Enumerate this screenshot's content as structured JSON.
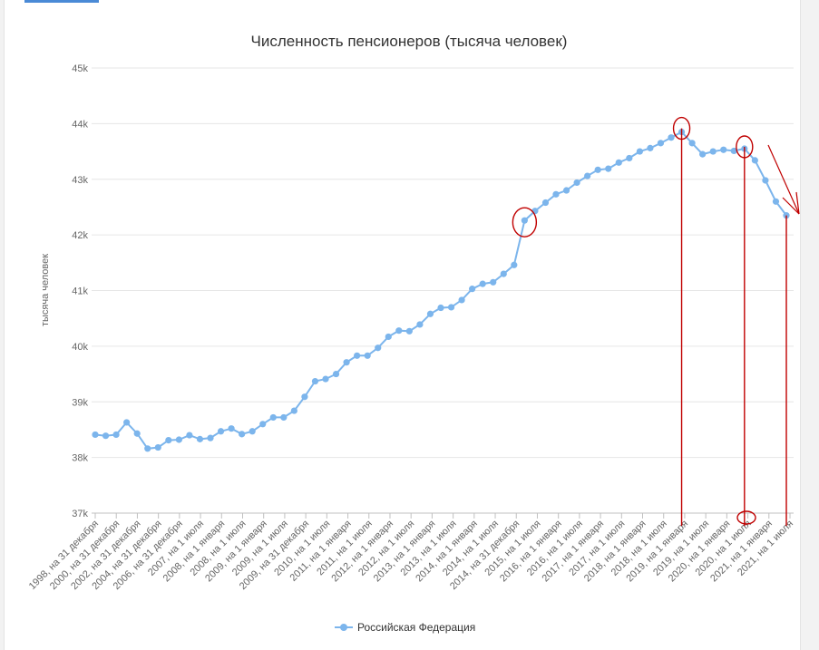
{
  "chart_data": {
    "type": "line",
    "title": "Численность пенсионеров (тысяча человек)",
    "ylabel": "тысяча человек",
    "ylim": [
      37000,
      45000
    ],
    "yticks": [
      {
        "value": 37000,
        "label": "37k"
      },
      {
        "value": 38000,
        "label": "38k"
      },
      {
        "value": 39000,
        "label": "39k"
      },
      {
        "value": 40000,
        "label": "40k"
      },
      {
        "value": 41000,
        "label": "41k"
      },
      {
        "value": 42000,
        "label": "42k"
      },
      {
        "value": 43000,
        "label": "43k"
      },
      {
        "value": 44000,
        "label": "44k"
      },
      {
        "value": 45000,
        "label": "45k"
      }
    ],
    "grid": true,
    "legend_position": "bottom-center",
    "series_color": "#7cb5ec",
    "annotation_color": "#c00000",
    "x_tick_labels": [
      "1998, на 31 декабря",
      "2000, на 31 декабря",
      "2002, на 31 декабря",
      "2004, на 31 декабря",
      "2006, на 31 декабря",
      "2007, на 1 июля",
      "2008, на 1 января",
      "2008, на 1 июля",
      "2009, на 1 января",
      "2009, на 1 июля",
      "2009, на 31 декабря",
      "2010, на 1 июля",
      "2011, на 1 января",
      "2011, на 1 июля",
      "2012, на 1 января",
      "2012, на 1 июля",
      "2013, на 1 января",
      "2013, на 1 июля",
      "2014, на 1 января",
      "2014, на 1 июля",
      "2014, на 31 декабря",
      "2015, на 1 июля",
      "2016, на 1 января",
      "2016, на 1 июля",
      "2017, на 1 января",
      "2017, на 1 июля",
      "2018, на 1 января",
      "2018, на 1 июля",
      "2019, на 1 января",
      "2019, на 1 июля",
      "2020, на 1 января",
      "2020, на 1 июля",
      "2021, на 1 января",
      "2021, на 1 июля"
    ],
    "series": [
      {
        "name": "Российская Федерация",
        "values": [
          38410,
          38390,
          38410,
          38630,
          38430,
          38160,
          38180,
          38310,
          38320,
          38400,
          38330,
          38350,
          38470,
          38520,
          38420,
          38470,
          38600,
          38720,
          38720,
          38840,
          39090,
          39370,
          39410,
          39500,
          39710,
          39830,
          39830,
          39970,
          40170,
          40280,
          40270,
          40390,
          40580,
          40690,
          40700,
          40830,
          41030,
          41120,
          41150,
          41300,
          41460,
          42260,
          42430,
          42580,
          42730,
          42800,
          42940,
          43060,
          43170,
          43190,
          43300,
          43380,
          43500,
          43560,
          43650,
          43750,
          43850,
          43650,
          43450,
          43500,
          43530,
          43510,
          43550,
          43340,
          42980,
          42600,
          42350
        ]
      }
    ]
  }
}
